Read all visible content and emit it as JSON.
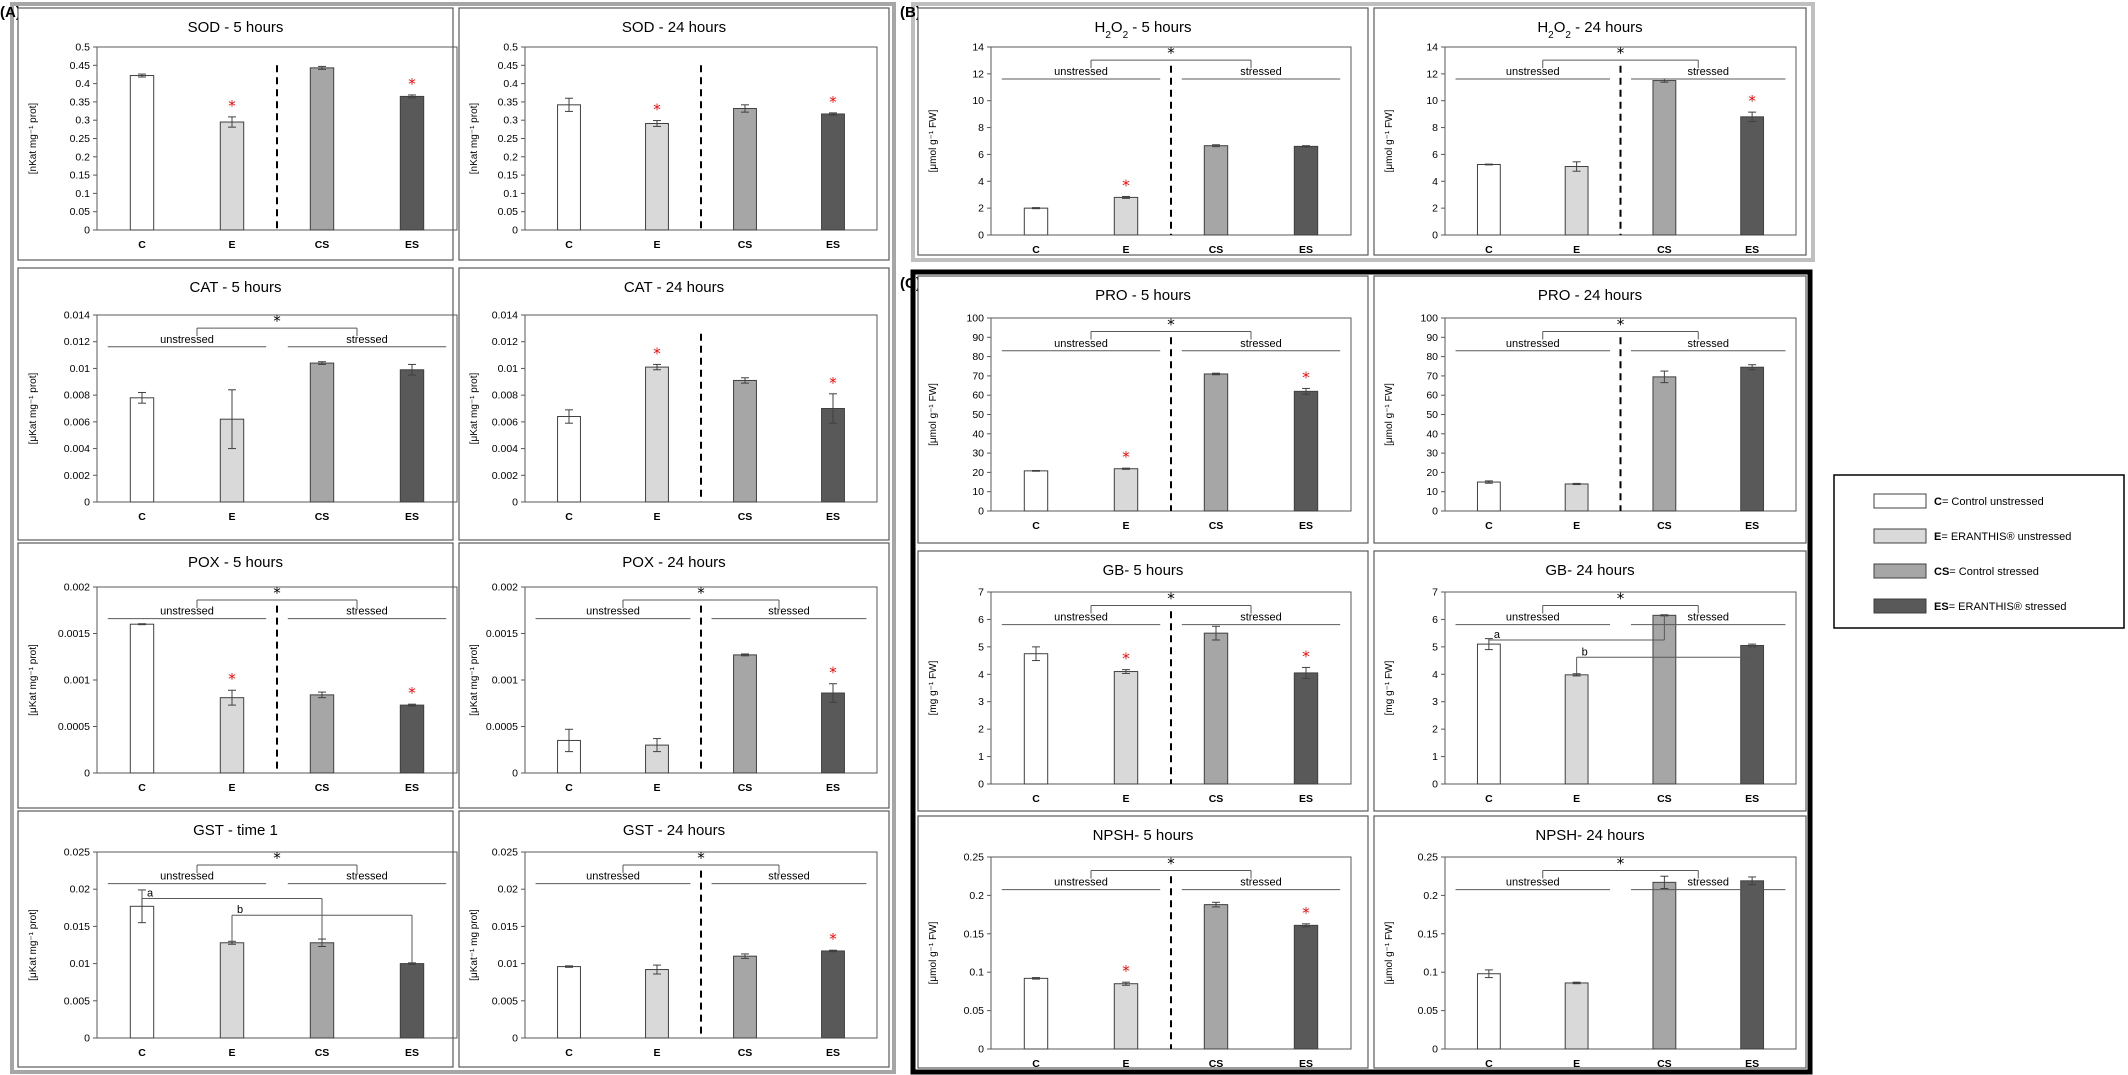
{
  "sections": {
    "A": "(A)",
    "B": "(B)",
    "C": "(C)"
  },
  "colors": {
    "C": "#ffffff",
    "E": "#d9d9d9",
    "CS": "#a6a6a6",
    "ES": "#595959",
    "significance": "#ff0000",
    "frameA": "#a6a6a6",
    "frameB": "#bfbfbf",
    "frameC": "#000000"
  },
  "legend": {
    "items": [
      {
        "key": "C",
        "code": "C",
        "text": "= Control unstressed",
        "color": "#ffffff"
      },
      {
        "key": "E",
        "code": "E",
        "text": "= ERANTHIS® unstressed",
        "color": "#d9d9d9"
      },
      {
        "key": "CS",
        "code": "CS",
        "text": "= Control stressed",
        "color": "#a6a6a6"
      },
      {
        "key": "ES",
        "code": "ES",
        "text": "= ERANTHIS® stressed",
        "color": "#595959"
      }
    ]
  },
  "chart_data": [
    {
      "id": "sod5",
      "section": "A",
      "type": "bar",
      "title": "SOD - 5 hours",
      "title_sub": "",
      "title_rest": "",
      "ylabel": "[nKat mg⁻¹ prot]",
      "ylim": [
        0,
        0.5
      ],
      "yticks": [
        "0",
        "0.05",
        "0.1",
        "0.15",
        "0.2",
        "0.25",
        "0.3",
        "0.35",
        "0.4",
        "0.45",
        "0.5"
      ],
      "categories": [
        "C",
        "E",
        "CS",
        "ES"
      ],
      "values": [
        0.422,
        0.295,
        0.443,
        0.365
      ],
      "errors": [
        0.004,
        0.014,
        0.004,
        0.004
      ],
      "stars": [
        false,
        true,
        false,
        true
      ],
      "divider": true,
      "grouping": null,
      "letters": null
    },
    {
      "id": "sod24",
      "section": "A",
      "type": "bar",
      "title": "SOD - 24 hours",
      "title_sub": "",
      "title_rest": "",
      "ylabel": "[nKat mg⁻¹ prot]",
      "ylim": [
        0,
        0.5
      ],
      "yticks": [
        "0",
        "0.05",
        "0.1",
        "0.15",
        "0.2",
        "0.25",
        "0.3",
        "0.35",
        "0.4",
        "0.45",
        "0.5"
      ],
      "categories": [
        "C",
        "E",
        "CS",
        "ES"
      ],
      "values": [
        0.342,
        0.291,
        0.332,
        0.317
      ],
      "errors": [
        0.018,
        0.008,
        0.01,
        0.003
      ],
      "stars": [
        false,
        true,
        false,
        true
      ],
      "divider": true,
      "grouping": null,
      "letters": null
    },
    {
      "id": "cat5",
      "section": "A",
      "type": "bar",
      "title": "CAT - 5 hours",
      "title_sub": "",
      "title_rest": "",
      "ylabel": "[μKat mg⁻¹ prot]",
      "ylim": [
        0,
        0.014
      ],
      "yticks": [
        "0",
        "0.002",
        "0.004",
        "0.006",
        "0.008",
        "0.01",
        "0.012",
        "0.014"
      ],
      "categories": [
        "C",
        "E",
        "CS",
        "ES"
      ],
      "values": [
        0.0078,
        0.0062,
        0.0104,
        0.0099
      ],
      "errors": [
        0.0004,
        0.0022,
        0.0001,
        0.0004
      ],
      "stars": [
        false,
        false,
        false,
        false
      ],
      "divider": false,
      "grouping": {
        "unstressed": "unstressed",
        "stressed": "stressed",
        "star": "*"
      },
      "letters": null
    },
    {
      "id": "cat24",
      "section": "A",
      "type": "bar",
      "title": "CAT - 24 hours",
      "title_sub": "",
      "title_rest": "",
      "ylabel": "[μKat mg⁻¹ prot]",
      "ylim": [
        0,
        0.014
      ],
      "yticks": [
        "0",
        "0.002",
        "0.004",
        "0.006",
        "0.008",
        "0.01",
        "0.012",
        "0.014"
      ],
      "categories": [
        "C",
        "E",
        "CS",
        "ES"
      ],
      "values": [
        0.0064,
        0.0101,
        0.0091,
        0.007
      ],
      "errors": [
        0.0005,
        0.0002,
        0.0002,
        0.0011
      ],
      "stars": [
        false,
        true,
        false,
        true
      ],
      "divider": true,
      "grouping": null,
      "letters": null
    },
    {
      "id": "pox5",
      "section": "A",
      "type": "bar",
      "title": "POX - 5 hours",
      "title_sub": "",
      "title_rest": "",
      "ylabel": "[μKat mg⁻¹ prot]",
      "ylim": [
        0,
        0.002
      ],
      "yticks": [
        "0",
        "0.0005",
        "0.001",
        "0.0015",
        "0.002"
      ],
      "categories": [
        "C",
        "E",
        "CS",
        "ES"
      ],
      "values": [
        0.0016,
        0.00081,
        0.00084,
        0.00073
      ],
      "errors": [
        5e-06,
        8e-05,
        3e-05,
        1e-05
      ],
      "stars": [
        false,
        true,
        false,
        true
      ],
      "divider": true,
      "grouping": {
        "unstressed": "unstressed",
        "stressed": "stressed",
        "star": "*"
      },
      "letters": null
    },
    {
      "id": "pox24",
      "section": "A",
      "type": "bar",
      "title": "POX - 24 hours",
      "title_sub": "",
      "title_rest": "",
      "ylabel": "[μKat mg⁻¹ prot]",
      "ylim": [
        0,
        0.002
      ],
      "yticks": [
        "0",
        "0.0005",
        "0.001",
        "0.0015",
        "0.002"
      ],
      "categories": [
        "C",
        "E",
        "CS",
        "ES"
      ],
      "values": [
        0.00035,
        0.0003,
        0.00127,
        0.00086
      ],
      "errors": [
        0.00012,
        7e-05,
        1e-05,
        0.0001
      ],
      "stars": [
        false,
        false,
        false,
        true
      ],
      "divider": true,
      "grouping": {
        "unstressed": "unstressed",
        "stressed": "stressed",
        "star": "*"
      },
      "letters": null
    },
    {
      "id": "gst1",
      "section": "A",
      "type": "bar",
      "title": "GST - time 1",
      "title_sub": "",
      "title_rest": "",
      "ylabel": "[μKat mg⁻¹ prot]",
      "ylim": [
        0,
        0.025
      ],
      "yticks": [
        "0",
        "0.005",
        "0.01",
        "0.015",
        "0.02",
        "0.025"
      ],
      "categories": [
        "C",
        "E",
        "CS",
        "ES"
      ],
      "values": [
        0.0177,
        0.0128,
        0.0128,
        0.01
      ],
      "errors": [
        0.0022,
        0.0002,
        0.0005,
        0.0001
      ],
      "stars": [
        false,
        false,
        false,
        false
      ],
      "divider": false,
      "grouping": {
        "unstressed": "unstressed",
        "stressed": "stressed",
        "star": "*"
      },
      "letters": {
        "a": "a",
        "b": "b"
      }
    },
    {
      "id": "gst24",
      "section": "A",
      "type": "bar",
      "title": "GST - 24 hours",
      "title_sub": "",
      "title_rest": "",
      "ylabel": "[μKat⁻¹ mg prot]",
      "ylim": [
        0,
        0.025
      ],
      "yticks": [
        "0",
        "0.005",
        "0.01",
        "0.015",
        "0.02",
        "0.025"
      ],
      "categories": [
        "C",
        "E",
        "CS",
        "ES"
      ],
      "values": [
        0.0096,
        0.0092,
        0.011,
        0.0117
      ],
      "errors": [
        0.0001,
        0.0006,
        0.0003,
        0.0001
      ],
      "stars": [
        false,
        false,
        false,
        true
      ],
      "divider": true,
      "grouping": {
        "unstressed": "unstressed",
        "stressed": "stressed",
        "star": "*"
      },
      "letters": null
    },
    {
      "id": "h2o25",
      "section": "B",
      "type": "bar",
      "title": "H",
      "title_sub": "2",
      "title_rest": "O",
      "title_sub2": "2",
      "title_end": " - 5 hours",
      "ylabel": "[μmol g⁻¹ FW]",
      "ylim": [
        0,
        14
      ],
      "yticks": [
        "0",
        "2",
        "4",
        "6",
        "8",
        "10",
        "12",
        "14"
      ],
      "categories": [
        "C",
        "E",
        "CS",
        "ES"
      ],
      "values": [
        2.0,
        2.8,
        6.65,
        6.6
      ],
      "errors": [
        0.04,
        0.07,
        0.07,
        0.05
      ],
      "stars": [
        false,
        true,
        false,
        false
      ],
      "divider": true,
      "grouping": {
        "unstressed": "unstressed",
        "stressed": "stressed",
        "star": "*"
      },
      "letters": null
    },
    {
      "id": "h2o224",
      "section": "B",
      "type": "bar",
      "title": "H",
      "title_sub": "2",
      "title_rest": "O",
      "title_sub2": "2",
      "title_end": " - 24 hours",
      "ylabel": "[μmol g⁻¹ FW]",
      "ylim": [
        0,
        14
      ],
      "yticks": [
        "0",
        "2",
        "4",
        "6",
        "8",
        "10",
        "12",
        "14"
      ],
      "categories": [
        "C",
        "E",
        "CS",
        "ES"
      ],
      "values": [
        5.25,
        5.1,
        11.5,
        8.8
      ],
      "errors": [
        0.03,
        0.35,
        0.12,
        0.35
      ],
      "stars": [
        false,
        false,
        false,
        true
      ],
      "divider": true,
      "grouping": {
        "unstressed": "unstressed",
        "stressed": "stressed",
        "star": "*"
      },
      "letters": null
    },
    {
      "id": "pro5",
      "section": "C",
      "type": "bar",
      "title": "PRO - 5 hours",
      "title_sub": "",
      "title_rest": "",
      "ylabel": "[μmol g⁻¹ FW]",
      "ylim": [
        0,
        100
      ],
      "yticks": [
        "0",
        "10",
        "20",
        "30",
        "40",
        "50",
        "60",
        "70",
        "80",
        "90",
        "100"
      ],
      "categories": [
        "C",
        "E",
        "CS",
        "ES"
      ],
      "values": [
        20.8,
        21.9,
        71.0,
        62.0
      ],
      "errors": [
        0.2,
        0.3,
        0.4,
        1.5
      ],
      "stars": [
        false,
        true,
        false,
        true
      ],
      "divider": true,
      "grouping": {
        "unstressed": "unstressed",
        "stressed": "stressed",
        "star": "*"
      },
      "letters": null
    },
    {
      "id": "pro24",
      "section": "C",
      "type": "bar",
      "title": "PRO - 24 hours",
      "title_sub": "",
      "title_rest": "",
      "ylabel": "[μmol g⁻¹ FW]",
      "ylim": [
        0,
        100
      ],
      "yticks": [
        "0",
        "10",
        "20",
        "30",
        "40",
        "50",
        "60",
        "70",
        "80",
        "90",
        "100"
      ],
      "categories": [
        "C",
        "E",
        "CS",
        "ES"
      ],
      "values": [
        15.0,
        14.0,
        69.5,
        74.5
      ],
      "errors": [
        0.6,
        0.3,
        3.0,
        1.3
      ],
      "stars": [
        false,
        false,
        false,
        false
      ],
      "divider": true,
      "grouping": {
        "unstressed": "unstressed",
        "stressed": "stressed",
        "star": "*"
      },
      "letters": null
    },
    {
      "id": "gb5",
      "section": "C",
      "type": "bar",
      "title": "GB- 5 hours",
      "title_sub": "",
      "title_rest": "",
      "ylabel": "[mg g⁻¹ FW]",
      "ylim": [
        0,
        7
      ],
      "yticks": [
        "0",
        "1",
        "2",
        "3",
        "4",
        "5",
        "6",
        "7"
      ],
      "categories": [
        "C",
        "E",
        "CS",
        "ES"
      ],
      "values": [
        4.75,
        4.1,
        5.5,
        4.05
      ],
      "errors": [
        0.25,
        0.07,
        0.25,
        0.2
      ],
      "stars": [
        false,
        true,
        false,
        true
      ],
      "divider": true,
      "grouping": {
        "unstressed": "unstressed",
        "stressed": "stressed",
        "star": "*"
      },
      "letters": null
    },
    {
      "id": "gb24",
      "section": "C",
      "type": "bar",
      "title": "GB- 24 hours",
      "title_sub": "",
      "title_rest": "",
      "ylabel": "[mg g⁻¹ FW]",
      "ylim": [
        0,
        7
      ],
      "yticks": [
        "0",
        "1",
        "2",
        "3",
        "4",
        "5",
        "6",
        "7"
      ],
      "categories": [
        "C",
        "E",
        "CS",
        "ES"
      ],
      "values": [
        5.1,
        3.98,
        6.15,
        5.05
      ],
      "errors": [
        0.2,
        0.04,
        0.02,
        0.05
      ],
      "stars": [
        false,
        false,
        false,
        false
      ],
      "divider": false,
      "grouping": {
        "unstressed": "unstressed",
        "stressed": "stressed",
        "star": "*"
      },
      "letters": {
        "a": "a",
        "b": "b"
      }
    },
    {
      "id": "npsh5",
      "section": "C",
      "type": "bar",
      "title": "NPSH- 5 hours",
      "title_sub": "",
      "title_rest": "",
      "ylabel": "[μmol g⁻¹ FW]",
      "ylim": [
        0,
        0.25
      ],
      "yticks": [
        "0",
        "0.05",
        "0.1",
        "0.15",
        "0.2",
        "0.25"
      ],
      "categories": [
        "C",
        "E",
        "CS",
        "ES"
      ],
      "values": [
        0.092,
        0.085,
        0.188,
        0.161
      ],
      "errors": [
        0.001,
        0.002,
        0.003,
        0.002
      ],
      "stars": [
        false,
        true,
        false,
        true
      ],
      "divider": true,
      "grouping": {
        "unstressed": "unstressed",
        "stressed": "stressed",
        "star": "*"
      },
      "letters": null
    },
    {
      "id": "npsh24",
      "section": "C",
      "type": "bar",
      "title": "NPSH- 24 hours",
      "title_sub": "",
      "title_rest": "",
      "ylabel": "[μmol g⁻¹ FW]",
      "ylim": [
        0,
        0.25
      ],
      "yticks": [
        "0",
        "0.05",
        "0.1",
        "0.15",
        "0.2",
        "0.25"
      ],
      "categories": [
        "C",
        "E",
        "CS",
        "ES"
      ],
      "values": [
        0.098,
        0.086,
        0.217,
        0.219
      ],
      "errors": [
        0.005,
        0.001,
        0.008,
        0.005
      ],
      "stars": [
        false,
        false,
        false,
        false
      ],
      "divider": false,
      "grouping": {
        "unstressed": "unstressed",
        "stressed": "stressed",
        "star": "*"
      },
      "letters": null
    }
  ]
}
